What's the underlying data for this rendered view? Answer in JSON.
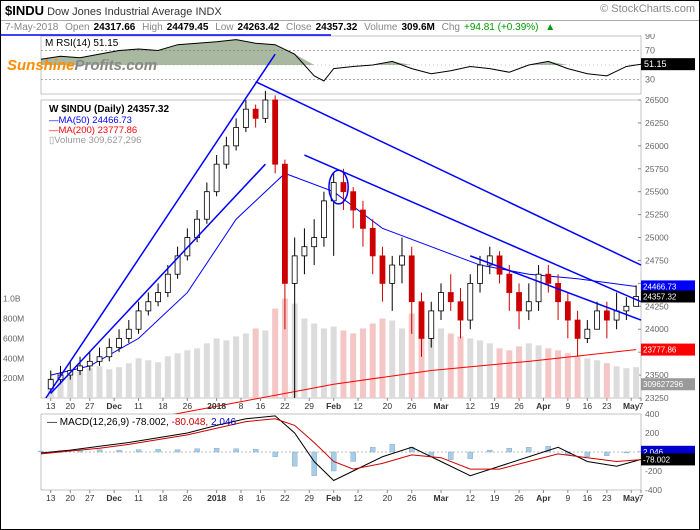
{
  "header": {
    "symbol": "$INDU",
    "name": "Dow Jones Industrial Average",
    "type": "INDX",
    "credit": "© StockCharts.com",
    "date": "7-May-2018",
    "open_lbl": "Open",
    "open": "24317.66",
    "high_lbl": "High",
    "high": "24479.45",
    "low_lbl": "Low",
    "low": "24263.42",
    "close_lbl": "Close",
    "close": "24357.32",
    "vol_lbl": "Volume",
    "vol": "309.6M",
    "chg_lbl": "Chg",
    "chg": "+94.81 (+0.39%)",
    "chg_arrow": "▲"
  },
  "watermark": {
    "sun": "Sunshine",
    "prof": "Profits.com"
  },
  "rsi": {
    "title": "RSI(14)",
    "value": "51.15",
    "ylim": [
      10,
      90
    ],
    "ticks": [
      30,
      50,
      70,
      90
    ],
    "bg": "#ffffff",
    "line_color": "#000000",
    "band_fill": "#e0e8d0",
    "mid_line": "#888888",
    "points": [
      [
        0,
        58
      ],
      [
        20,
        62
      ],
      [
        40,
        60
      ],
      [
        60,
        65
      ],
      [
        80,
        70
      ],
      [
        100,
        72
      ],
      [
        120,
        70
      ],
      [
        140,
        78
      ],
      [
        160,
        80
      ],
      [
        180,
        82
      ],
      [
        200,
        85
      ],
      [
        220,
        80
      ],
      [
        240,
        78
      ],
      [
        260,
        65
      ],
      [
        280,
        35
      ],
      [
        290,
        28
      ],
      [
        300,
        45
      ],
      [
        320,
        48
      ],
      [
        340,
        50
      ],
      [
        360,
        55
      ],
      [
        380,
        45
      ],
      [
        400,
        38
      ],
      [
        420,
        42
      ],
      [
        440,
        48
      ],
      [
        460,
        45
      ],
      [
        480,
        40
      ],
      [
        500,
        50
      ],
      [
        520,
        55
      ],
      [
        540,
        45
      ],
      [
        560,
        38
      ],
      [
        580,
        35
      ],
      [
        600,
        48
      ],
      [
        615,
        51
      ]
    ],
    "marker_fill": "#000",
    "marker_val": "51.15"
  },
  "price": {
    "title": "$INDU (Daily)",
    "title_val": "24357.32",
    "ma50_lbl": "MA(50)",
    "ma50_val": "24466.73",
    "ma50_col": "#0000ff",
    "ma200_lbl": "MA(200)",
    "ma200_val": "23777.86",
    "ma200_col": "#ff0000",
    "vol_lbl": "Volume",
    "vol_val": "309,627,296",
    "ylim": [
      23250,
      26500
    ],
    "yticks": [
      23250,
      23500,
      23750,
      24000,
      24250,
      24500,
      24750,
      25000,
      25250,
      25500,
      25750,
      26000,
      26250,
      26500
    ],
    "vol_ticks": [
      "200M",
      "400M",
      "600M",
      "800M",
      "1.0B"
    ],
    "grid_color": "#e0e0e0",
    "up_color": "#ffffff",
    "up_border": "#000000",
    "down_color": "#cc0000",
    "down_border": "#cc0000",
    "vol_up_fill": "#d0d0d0",
    "vol_dn_fill": "#f8c0c0",
    "trend_color": "#0000ff",
    "trend_width": 1.5,
    "circle_color": "#0000ff",
    "candles": [
      [
        10,
        23450,
        23350,
        23550,
        23300
      ],
      [
        20,
        23500,
        23450,
        23600,
        23400
      ],
      [
        30,
        23550,
        23500,
        23650,
        23450
      ],
      [
        40,
        23600,
        23550,
        23700,
        23500
      ],
      [
        50,
        23650,
        23600,
        23750,
        23550
      ],
      [
        60,
        23700,
        23650,
        23800,
        23600
      ],
      [
        70,
        23800,
        23700,
        23900,
        23650
      ],
      [
        80,
        23900,
        23800,
        24000,
        23750
      ],
      [
        90,
        24000,
        23900,
        24100,
        23850
      ],
      [
        100,
        24200,
        24000,
        24300,
        23950
      ],
      [
        110,
        24300,
        24200,
        24400,
        24150
      ],
      [
        120,
        24400,
        24300,
        24500,
        24250
      ],
      [
        130,
        24600,
        24400,
        24700,
        24350
      ],
      [
        140,
        24800,
        24600,
        24900,
        24550
      ],
      [
        150,
        25000,
        24800,
        25100,
        24750
      ],
      [
        160,
        25200,
        25000,
        25300,
        24950
      ],
      [
        170,
        25500,
        25200,
        25600,
        25150
      ],
      [
        180,
        25800,
        25500,
        25900,
        25450
      ],
      [
        190,
        26000,
        25800,
        26100,
        25750
      ],
      [
        200,
        26200,
        26000,
        26300,
        25950
      ],
      [
        210,
        26400,
        26200,
        26500,
        26150
      ],
      [
        220,
        26300,
        26400,
        26450,
        26200
      ],
      [
        230,
        26500,
        26300,
        26600,
        26250
      ],
      [
        240,
        25800,
        26500,
        26550,
        25700
      ],
      [
        250,
        24500,
        25800,
        25850,
        24000
      ],
      [
        260,
        24800,
        24500,
        25000,
        23250
      ],
      [
        270,
        24900,
        24800,
        25100,
        24600
      ],
      [
        280,
        25000,
        24900,
        25200,
        24700
      ],
      [
        290,
        25400,
        25000,
        25500,
        24900
      ],
      [
        300,
        25600,
        25400,
        25700,
        24800
      ],
      [
        310,
        25500,
        25600,
        25750,
        25300
      ],
      [
        320,
        25300,
        25500,
        25550,
        25100
      ],
      [
        330,
        25100,
        25300,
        25400,
        24900
      ],
      [
        340,
        24800,
        25100,
        25200,
        24600
      ],
      [
        350,
        24500,
        24800,
        24900,
        24300
      ],
      [
        360,
        24700,
        24500,
        24800,
        24200
      ],
      [
        370,
        24800,
        24700,
        25000,
        24500
      ],
      [
        380,
        24300,
        24800,
        24900,
        23950
      ],
      [
        390,
        23900,
        24300,
        24400,
        23700
      ],
      [
        400,
        24200,
        23900,
        24300,
        23800
      ],
      [
        410,
        24400,
        24200,
        24500,
        24100
      ],
      [
        420,
        24300,
        24400,
        24600,
        24200
      ],
      [
        430,
        24100,
        24300,
        24450,
        23900
      ],
      [
        440,
        24500,
        24100,
        24600,
        24000
      ],
      [
        450,
        24700,
        24500,
        24800,
        24400
      ],
      [
        460,
        24800,
        24700,
        24900,
        24600
      ],
      [
        470,
        24600,
        24800,
        24850,
        24500
      ],
      [
        480,
        24400,
        24600,
        24700,
        24200
      ],
      [
        490,
        24200,
        24400,
        24500,
        24000
      ],
      [
        500,
        24300,
        24200,
        24500,
        24100
      ],
      [
        510,
        24600,
        24300,
        24700,
        24200
      ],
      [
        520,
        24500,
        24600,
        24700,
        24400
      ],
      [
        530,
        24300,
        24500,
        24600,
        24100
      ],
      [
        540,
        24100,
        24300,
        24400,
        23900
      ],
      [
        550,
        23900,
        24100,
        24200,
        23700
      ],
      [
        560,
        24000,
        23900,
        24100,
        23850
      ],
      [
        570,
        24200,
        24000,
        24300,
        24050
      ],
      [
        580,
        24100,
        24200,
        24300,
        23900
      ],
      [
        590,
        24200,
        24100,
        24400,
        24000
      ],
      [
        600,
        24250,
        24200,
        24350,
        24100
      ],
      [
        610,
        24357,
        24250,
        24479,
        24263
      ]
    ],
    "volumes": [
      [
        10,
        200
      ],
      [
        20,
        250
      ],
      [
        30,
        220
      ],
      [
        40,
        280
      ],
      [
        50,
        300
      ],
      [
        60,
        320
      ],
      [
        70,
        290
      ],
      [
        80,
        310
      ],
      [
        90,
        350
      ],
      [
        100,
        400
      ],
      [
        110,
        380
      ],
      [
        120,
        360
      ],
      [
        130,
        420
      ],
      [
        140,
        450
      ],
      [
        150,
        480
      ],
      [
        160,
        500
      ],
      [
        170,
        550
      ],
      [
        180,
        600
      ],
      [
        190,
        580
      ],
      [
        200,
        620
      ],
      [
        210,
        650
      ],
      [
        220,
        700
      ],
      [
        230,
        680
      ],
      [
        240,
        900
      ],
      [
        250,
        1000
      ],
      [
        260,
        950
      ],
      [
        270,
        800
      ],
      [
        280,
        750
      ],
      [
        290,
        700
      ],
      [
        300,
        720
      ],
      [
        310,
        680
      ],
      [
        320,
        650
      ],
      [
        330,
        700
      ],
      [
        340,
        750
      ],
      [
        350,
        800
      ],
      [
        360,
        780
      ],
      [
        370,
        700
      ],
      [
        380,
        850
      ],
      [
        390,
        900
      ],
      [
        400,
        750
      ],
      [
        410,
        700
      ],
      [
        420,
        650
      ],
      [
        430,
        620
      ],
      [
        440,
        600
      ],
      [
        450,
        580
      ],
      [
        460,
        550
      ],
      [
        470,
        500
      ],
      [
        480,
        480
      ],
      [
        490,
        520
      ],
      [
        500,
        550
      ],
      [
        510,
        530
      ],
      [
        520,
        500
      ],
      [
        530,
        480
      ],
      [
        540,
        450
      ],
      [
        550,
        420
      ],
      [
        560,
        400
      ],
      [
        570,
        380
      ],
      [
        580,
        350
      ],
      [
        590,
        320
      ],
      [
        600,
        300
      ],
      [
        610,
        310
      ]
    ],
    "ma50": [
      [
        10,
        23500
      ],
      [
        50,
        23600
      ],
      [
        100,
        23900
      ],
      [
        150,
        24400
      ],
      [
        200,
        25200
      ],
      [
        250,
        25700
      ],
      [
        300,
        25500
      ],
      [
        350,
        25100
      ],
      [
        400,
        24900
      ],
      [
        450,
        24700
      ],
      [
        500,
        24600
      ],
      [
        550,
        24550
      ],
      [
        610,
        24466
      ]
    ],
    "ma200": [
      [
        10,
        22800
      ],
      [
        100,
        23000
      ],
      [
        200,
        23200
      ],
      [
        300,
        23400
      ],
      [
        400,
        23550
      ],
      [
        500,
        23650
      ],
      [
        610,
        23778
      ]
    ],
    "trends": [
      [
        [
          10,
          23300
        ],
        [
          230,
          25800
        ]
      ],
      [
        [
          5,
          23250
        ],
        [
          240,
          27000
        ]
      ],
      [
        [
          220,
          26700
        ],
        [
          615,
          24700
        ]
      ],
      [
        [
          270,
          25900
        ],
        [
          615,
          24300
        ]
      ],
      [
        [
          440,
          24800
        ],
        [
          615,
          24100
        ]
      ]
    ],
    "circle": [
      305,
      25550,
      12
    ],
    "markers": {
      "ma50": {
        "val": "24466.73",
        "y": 24467,
        "bg": "#0000ff"
      },
      "close": {
        "val": "24357.32",
        "y": 24357,
        "bg": "#000000"
      },
      "ma200": {
        "val": "23777.86",
        "y": 23778,
        "bg": "#ff0000"
      },
      "vol": {
        "val": "309627296",
        "y": 23400,
        "bg": "#999999"
      }
    }
  },
  "macd": {
    "title": "MACD(12,26,9)",
    "vals": [
      "-78.002",
      "-80.048",
      "2.046"
    ],
    "val_colors": [
      "#000000",
      "#cc0000",
      "#0000cc"
    ],
    "ylim": [
      -400,
      400
    ],
    "ticks": [
      -400,
      -200,
      0,
      200,
      400
    ],
    "hist_up": "#c0e0f0",
    "hist_dn": "#c0e0f0",
    "line1_col": "#000000",
    "line2_col": "#cc0000",
    "line1": [
      [
        0,
        -10
      ],
      [
        30,
        20
      ],
      [
        60,
        60
      ],
      [
        90,
        100
      ],
      [
        120,
        150
      ],
      [
        150,
        200
      ],
      [
        180,
        280
      ],
      [
        210,
        350
      ],
      [
        240,
        380
      ],
      [
        260,
        200
      ],
      [
        280,
        -100
      ],
      [
        300,
        -300
      ],
      [
        320,
        -200
      ],
      [
        350,
        -50
      ],
      [
        380,
        50
      ],
      [
        410,
        -100
      ],
      [
        440,
        -250
      ],
      [
        470,
        -150
      ],
      [
        500,
        -50
      ],
      [
        530,
        50
      ],
      [
        560,
        -100
      ],
      [
        590,
        -150
      ],
      [
        615,
        -78
      ]
    ],
    "line2": [
      [
        0,
        -20
      ],
      [
        30,
        10
      ],
      [
        60,
        40
      ],
      [
        90,
        80
      ],
      [
        120,
        130
      ],
      [
        150,
        180
      ],
      [
        180,
        250
      ],
      [
        210,
        320
      ],
      [
        240,
        350
      ],
      [
        260,
        280
      ],
      [
        280,
        100
      ],
      [
        300,
        -100
      ],
      [
        320,
        -180
      ],
      [
        350,
        -120
      ],
      [
        380,
        -30
      ],
      [
        410,
        -60
      ],
      [
        440,
        -180
      ],
      [
        470,
        -180
      ],
      [
        500,
        -100
      ],
      [
        530,
        -20
      ],
      [
        560,
        -60
      ],
      [
        590,
        -100
      ],
      [
        615,
        -80
      ]
    ],
    "hist": [
      [
        0,
        10
      ],
      [
        20,
        15
      ],
      [
        40,
        20
      ],
      [
        60,
        25
      ],
      [
        80,
        20
      ],
      [
        100,
        25
      ],
      [
        120,
        30
      ],
      [
        140,
        25
      ],
      [
        160,
        35
      ],
      [
        180,
        40
      ],
      [
        200,
        35
      ],
      [
        220,
        30
      ],
      [
        240,
        -50
      ],
      [
        260,
        -150
      ],
      [
        280,
        -250
      ],
      [
        300,
        -200
      ],
      [
        320,
        -100
      ],
      [
        340,
        50
      ],
      [
        360,
        80
      ],
      [
        380,
        50
      ],
      [
        400,
        -50
      ],
      [
        420,
        -80
      ],
      [
        440,
        -70
      ],
      [
        460,
        20
      ],
      [
        480,
        40
      ],
      [
        500,
        50
      ],
      [
        520,
        60
      ],
      [
        540,
        -30
      ],
      [
        560,
        -50
      ],
      [
        580,
        -40
      ],
      [
        600,
        -10
      ],
      [
        615,
        2
      ]
    ],
    "markers": {
      "sig": {
        "val": "2.046",
        "bg": "#0000cc"
      },
      "macd": {
        "val": "-78.002",
        "bg": "#000000"
      }
    }
  },
  "xaxis": {
    "ticks": [
      [
        10,
        "13"
      ],
      [
        30,
        "20"
      ],
      [
        50,
        "27"
      ],
      [
        75,
        "Dec"
      ],
      [
        100,
        "11"
      ],
      [
        125,
        "18"
      ],
      [
        150,
        "26"
      ],
      [
        180,
        "2018"
      ],
      [
        205,
        "8"
      ],
      [
        225,
        "16"
      ],
      [
        250,
        "22"
      ],
      [
        275,
        "29"
      ],
      [
        300,
        "Feb"
      ],
      [
        325,
        "12"
      ],
      [
        355,
        "20"
      ],
      [
        380,
        "26"
      ],
      [
        410,
        "Mar"
      ],
      [
        440,
        "12"
      ],
      [
        465,
        "19"
      ],
      [
        490,
        "26"
      ],
      [
        515,
        "Apr"
      ],
      [
        540,
        "9"
      ],
      [
        560,
        "16"
      ],
      [
        580,
        "23"
      ],
      [
        605,
        "May"
      ],
      [
        615,
        "7"
      ]
    ],
    "bold": [
      "Dec",
      "2018",
      "Feb",
      "Mar",
      "Apr",
      "May"
    ]
  }
}
